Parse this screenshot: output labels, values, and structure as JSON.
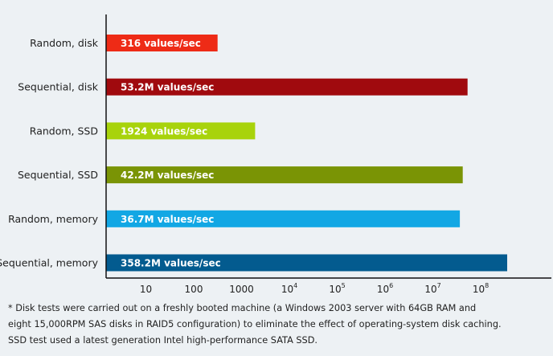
{
  "chart_data": {
    "type": "bar",
    "orientation": "horizontal",
    "scale": "log",
    "xlim": [
      1,
      100000000000
    ],
    "categories": [
      "Random, disk",
      "Sequential, disk",
      "Random, SSD",
      "Sequential, SSD",
      "Random, memory",
      "Sequential, memory"
    ],
    "values": [
      316,
      53200000,
      1924,
      42200000,
      36700000,
      358200000
    ],
    "data_labels": [
      "316 values/sec",
      "53.2M values/sec",
      "1924 values/sec",
      "42.2M values/sec",
      "36.7M values/sec",
      "358.2M values/sec"
    ],
    "colors": [
      "#ee2b16",
      "#a00a0e",
      "#a8d30b",
      "#7a9405",
      "#12a7e4",
      "#035b8f"
    ],
    "x_ticks": [
      {
        "value": 10,
        "base": "10",
        "exp": ""
      },
      {
        "value": 100,
        "base": "100",
        "exp": ""
      },
      {
        "value": 1000,
        "base": "1000",
        "exp": ""
      },
      {
        "value": 10000,
        "base": "10",
        "exp": "4"
      },
      {
        "value": 100000,
        "base": "10",
        "exp": "5"
      },
      {
        "value": 1000000,
        "base": "10",
        "exp": "6"
      },
      {
        "value": 10000000,
        "base": "10",
        "exp": "7"
      },
      {
        "value": 100000000,
        "base": "10",
        "exp": "8"
      }
    ],
    "grid": false,
    "legend": "none"
  },
  "footnote": {
    "line1": "*  Disk tests were carried out on a freshly booted machine (a Windows 2003 server with 64GB RAM and",
    "line2": "eight 15,000RPM SAS disks in RAID5 configuration) to eliminate the effect of operating-system disk caching.",
    "line3": "SSD test used a latest generation Intel high-performance SATA SSD."
  }
}
